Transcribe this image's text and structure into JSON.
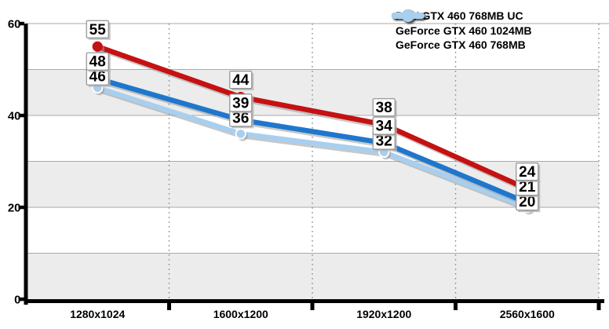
{
  "chart_data": {
    "type": "line",
    "title": "",
    "categories": [
      "1280x1024",
      "1600x1200",
      "1920x1200",
      "2560x1600"
    ],
    "series": [
      {
        "name": "POV GTX 460 768MB UC",
        "color": "#c51112",
        "values": [
          55,
          44,
          38,
          24
        ]
      },
      {
        "name": "GeForce GTX 460 1024MB",
        "color": "#1e77cd",
        "values": [
          48,
          39,
          34,
          21
        ]
      },
      {
        "name": "GeForce GTX 460 768MB",
        "color": "#a9cfef",
        "values": [
          46,
          36,
          32,
          20
        ]
      }
    ],
    "y_axis": {
      "min": 0,
      "max": 60,
      "tick_labels": [
        "0",
        "20",
        "40",
        "60"
      ],
      "labeled_step": 20,
      "gridline_step": 10
    },
    "x_axis": {
      "tick_labels": [
        "1280x1024",
        "1600x1200",
        "1920x1200",
        "2560x1600"
      ]
    },
    "data_labels_shown": true,
    "legend_position": "top-right",
    "grid": {
      "horizontal_gridlines": true,
      "vertical_separators": "dotted",
      "alternating_bands": true
    },
    "colors": {
      "band_gray": "#ececec",
      "gridline": "#a9a9a9",
      "dotted_separator": "#8a8a8a",
      "axis": "#000000",
      "label_box_fill": "#ffffff",
      "label_box_border": "#8f8f8f",
      "label_box_shadow": "#b5b5b5",
      "shadow": "#9a9a9a"
    }
  }
}
